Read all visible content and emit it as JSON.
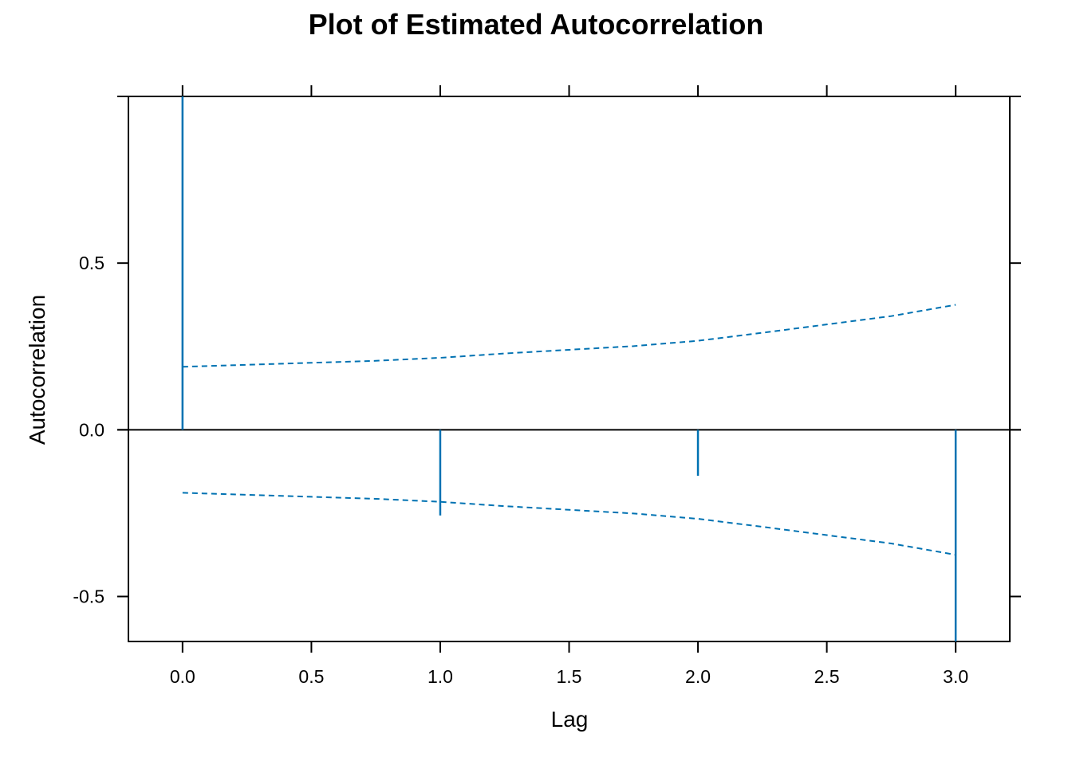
{
  "chart_data": {
    "type": "bar",
    "title": "Plot of Estimated Autocorrelation",
    "xlabel": "Lag",
    "ylabel": "Autocorrelation",
    "xlim": [
      -0.21,
      3.21
    ],
    "ylim": [
      -0.635,
      1.0
    ],
    "x_ticks": [
      0.0,
      0.5,
      1.0,
      1.5,
      2.0,
      2.5,
      3.0
    ],
    "x_tick_labels": [
      "0.0",
      "0.5",
      "1.0",
      "1.5",
      "2.0",
      "2.5",
      "3.0"
    ],
    "y_ticks": [
      -0.5,
      0.0,
      0.5
    ],
    "y_tick_labels": [
      "-0.5",
      "0.0",
      "0.5"
    ],
    "grid": false,
    "series": [
      {
        "type": "spike",
        "color": "#0072B2",
        "x": [
          0,
          1,
          2,
          3
        ],
        "values": [
          1.0,
          -0.257,
          -0.138,
          -0.635
        ]
      }
    ],
    "confidence_bands": {
      "color": "#0072B2",
      "style": "dashed",
      "x": [
        0.0,
        0.25,
        0.5,
        0.75,
        1.0,
        1.25,
        1.5,
        1.75,
        2.0,
        2.25,
        2.5,
        2.75,
        3.0
      ],
      "upper": [
        0.189,
        0.195,
        0.201,
        0.207,
        0.216,
        0.229,
        0.24,
        0.251,
        0.267,
        0.291,
        0.316,
        0.341,
        0.375
      ],
      "lower": [
        -0.189,
        -0.195,
        -0.201,
        -0.207,
        -0.216,
        -0.229,
        -0.24,
        -0.251,
        -0.267,
        -0.291,
        -0.316,
        -0.341,
        -0.375
      ]
    },
    "zero_reference_line": true
  }
}
